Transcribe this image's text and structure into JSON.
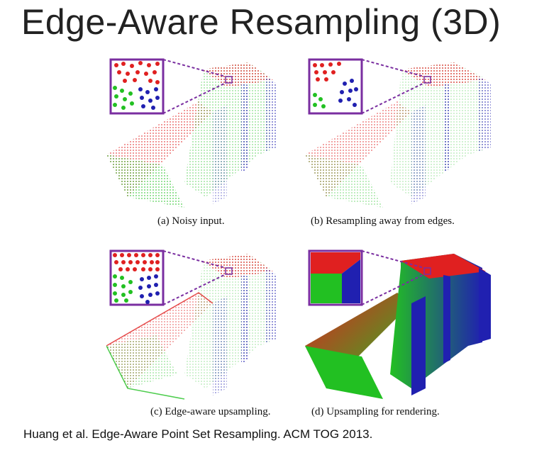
{
  "slide": {
    "title": "Edge-Aware Resampling (3D)",
    "citation": "Huang et al. Edge-Aware Point Set Resampling. ACM TOG 2013."
  },
  "figure": {
    "captions": [
      "(a) Noisy input.",
      "(b) Resampling away from edges.",
      "(c) Edge-aware upsampling.",
      "(d) Upsampling for rendering."
    ]
  },
  "colors": {
    "top_face": "#e02020",
    "front_face": "#22c022",
    "side_face": "#2020b0",
    "inset_border": "#7a2ea0"
  }
}
